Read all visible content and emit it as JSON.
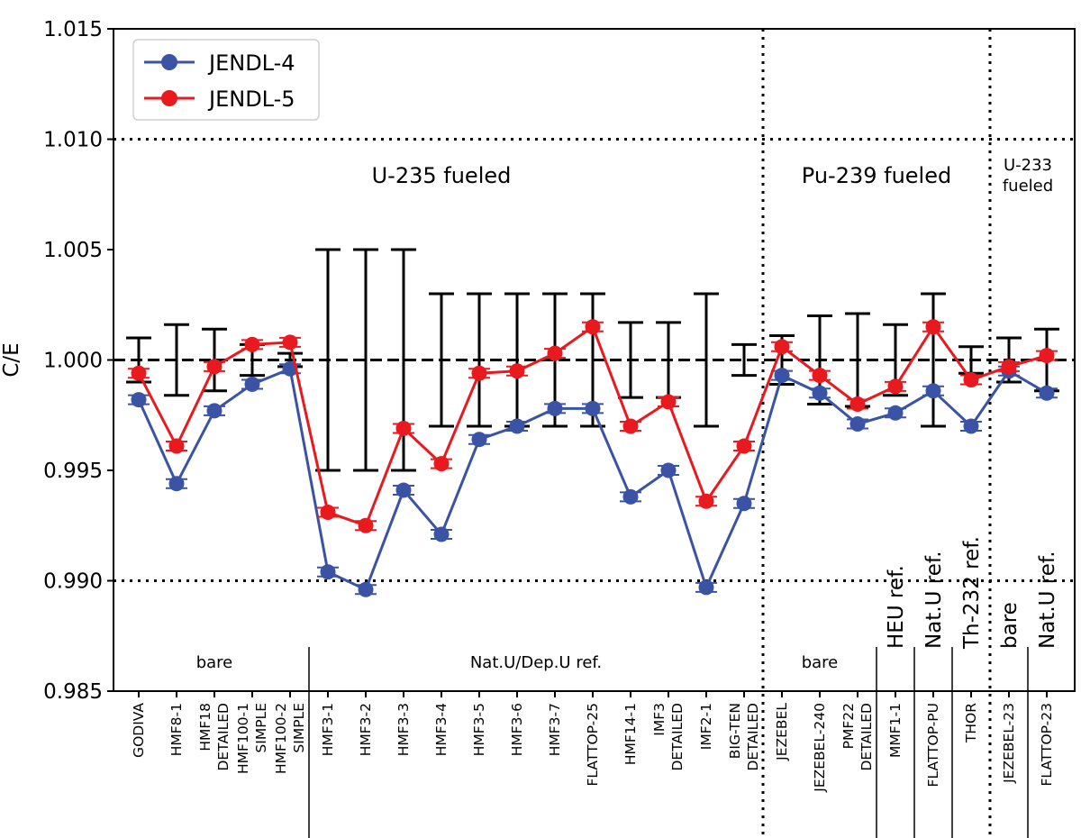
{
  "chart_data": {
    "type": "line",
    "ylabel": "C/E",
    "ylim": [
      0.985,
      1.015
    ],
    "yticks": [
      0.985,
      0.99,
      0.995,
      1.0,
      1.005,
      1.01,
      1.015
    ],
    "ytick_labels": [
      "0.985",
      "0.990",
      "0.995",
      "1.000",
      "1.005",
      "1.010",
      "1.015"
    ],
    "reference_lines": [
      {
        "value": 1.0,
        "style": "dashed"
      },
      {
        "value": 1.01,
        "style": "dotted"
      },
      {
        "value": 0.99,
        "style": "dotted"
      }
    ],
    "categories": [
      [
        "GODIVA"
      ],
      [
        "HMF8-1"
      ],
      [
        "HMF18",
        "DETAILED"
      ],
      [
        "HMF100-1",
        "SIMPLE"
      ],
      [
        "HMF100-2",
        "SIMPLE"
      ],
      [
        "HMF3-1"
      ],
      [
        "HMF3-2"
      ],
      [
        "HMF3-3"
      ],
      [
        "HMF3-4"
      ],
      [
        "HMF3-5"
      ],
      [
        "HMF3-6"
      ],
      [
        "HMF3-7"
      ],
      [
        "FLATTOP-25"
      ],
      [
        "HMF14-1"
      ],
      [
        "IMF3",
        "DETAILED"
      ],
      [
        "IMF2-1"
      ],
      [
        "BIG-TEN",
        "DETAILED"
      ],
      [
        "JEZEBEL"
      ],
      [
        "JEZEBEL-240"
      ],
      [
        "PMF22",
        "DETAILED"
      ],
      [
        "MMF1-1"
      ],
      [
        "FLATTOP-PU"
      ],
      [
        "THOR"
      ],
      [
        "JEZEBEL-23"
      ],
      [
        "FLATTOP-23"
      ]
    ],
    "experimental_uncertainty": [
      0.001,
      0.0016,
      0.0014,
      0.0007,
      0.0003,
      0.005,
      0.005,
      0.005,
      0.003,
      0.003,
      0.003,
      0.003,
      0.003,
      0.0017,
      0.0017,
      0.003,
      0.0007,
      0.0011,
      0.002,
      0.0021,
      0.0016,
      0.003,
      0.0006,
      0.001,
      0.0014
    ],
    "series": [
      {
        "name": "JENDL-4",
        "color": "#3a53a4",
        "values": [
          0.9982,
          0.9944,
          0.9977,
          0.9989,
          0.9996,
          0.9904,
          0.9896,
          0.9941,
          0.9921,
          0.9964,
          0.997,
          0.9978,
          0.9978,
          0.9938,
          0.995,
          0.9897,
          0.9935,
          0.9993,
          0.9985,
          0.9971,
          0.9976,
          0.9986,
          0.997,
          0.9995,
          0.9985
        ]
      },
      {
        "name": "JENDL-5",
        "color": "#e8191f",
        "values": [
          0.9994,
          0.9961,
          0.9997,
          1.0007,
          1.0008,
          0.9931,
          0.9925,
          0.9969,
          0.9953,
          0.9994,
          0.9995,
          1.0003,
          1.0015,
          0.997,
          0.9981,
          0.9936,
          0.9961,
          1.0006,
          0.9993,
          0.998,
          0.9988,
          1.0015,
          0.9991,
          0.9997,
          1.0002
        ]
      }
    ],
    "regions": [
      {
        "label": [
          "U-235 fueled"
        ],
        "from": 0,
        "to": 16
      },
      {
        "label": [
          "Pu-239 fueled"
        ],
        "from": 17,
        "to": 22
      },
      {
        "label": [
          "U-233",
          "fueled"
        ],
        "from": 23,
        "to": 24
      }
    ],
    "groups": [
      {
        "label": "bare",
        "from": 0,
        "to": 4
      },
      {
        "label": "Nat.U/Dep.U ref.",
        "from": 5,
        "to": 16
      },
      {
        "label": "bare",
        "from": 17,
        "to": 19
      },
      {
        "label": "HEU ref.",
        "from": 20,
        "to": 20,
        "rotated": true
      },
      {
        "label": "Nat.U ref.",
        "from": 21,
        "to": 21,
        "rotated": true
      },
      {
        "label": "Th-232 ref.",
        "from": 22,
        "to": 22,
        "rotated": true
      },
      {
        "label": "bare",
        "from": 23,
        "to": 23,
        "rotated": true
      },
      {
        "label": "Nat.U ref.",
        "from": 24,
        "to": 24,
        "rotated": true
      }
    ],
    "legend_position": "top-left"
  }
}
